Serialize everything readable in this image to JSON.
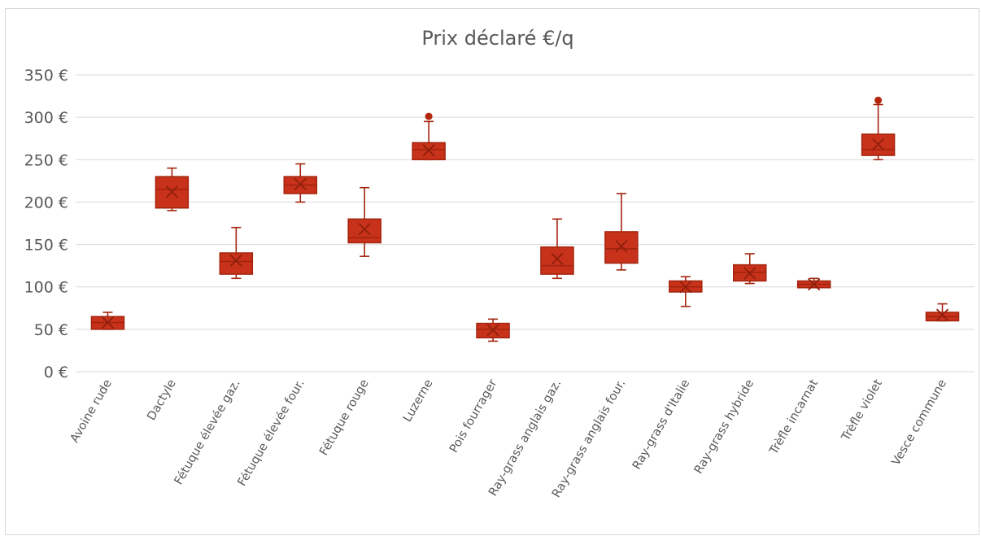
{
  "chart_data": {
    "type": "box",
    "title": "Prix déclaré €/q",
    "xlabel": "",
    "ylabel": "",
    "ylim": [
      0,
      350
    ],
    "y_ticks": [
      0,
      50,
      100,
      150,
      200,
      250,
      300,
      350
    ],
    "y_tick_labels": [
      "0 €",
      "50 €",
      "100 €",
      "150 €",
      "200 €",
      "250 €",
      "300 €",
      "350 €"
    ],
    "grid": true,
    "legend": "none",
    "color": "#c8321b",
    "categories": [
      "Avoine rude",
      "Dactyle",
      "Fétuque élevée gaz.",
      "Fétuque élevée four.",
      "Fétuque rouge",
      "Luzerne",
      "Pois fourrager",
      "Ray-grass anglais gaz.",
      "Ray-grass anglais four.",
      "Ray-grass d'Italie",
      "Ray-grass hybride",
      "Trèfle incarnat",
      "Trèfle violet",
      "Vesce commune"
    ],
    "boxes": [
      {
        "min": 50,
        "q1": 50,
        "median": 58,
        "q3": 65,
        "max": 70,
        "mean": 58,
        "outliers": []
      },
      {
        "min": 190,
        "q1": 193,
        "median": 215,
        "q3": 230,
        "max": 240,
        "mean": 212,
        "outliers": []
      },
      {
        "min": 110,
        "q1": 115,
        "median": 130,
        "q3": 140,
        "max": 170,
        "mean": 131,
        "outliers": []
      },
      {
        "min": 200,
        "q1": 210,
        "median": 220,
        "q3": 230,
        "max": 245,
        "mean": 221,
        "outliers": []
      },
      {
        "min": 136,
        "q1": 152,
        "median": 158,
        "q3": 180,
        "max": 217,
        "mean": 168,
        "outliers": []
      },
      {
        "min": 250,
        "q1": 250,
        "median": 262,
        "q3": 270,
        "max": 295,
        "mean": 261,
        "outliers": [
          301
        ]
      },
      {
        "min": 36,
        "q1": 40,
        "median": 50,
        "q3": 57,
        "max": 62,
        "mean": 49,
        "outliers": []
      },
      {
        "min": 110,
        "q1": 115,
        "median": 125,
        "q3": 147,
        "max": 180,
        "mean": 133,
        "outliers": []
      },
      {
        "min": 120,
        "q1": 128,
        "median": 145,
        "q3": 165,
        "max": 210,
        "mean": 148,
        "outliers": []
      },
      {
        "min": 77,
        "q1": 94,
        "median": 100,
        "q3": 107,
        "max": 112,
        "mean": 100,
        "outliers": []
      },
      {
        "min": 104,
        "q1": 107,
        "median": 117,
        "q3": 126,
        "max": 139,
        "mean": 116,
        "outliers": []
      },
      {
        "min": 99,
        "q1": 99,
        "median": 103,
        "q3": 107,
        "max": 110,
        "mean": 103,
        "outliers": []
      },
      {
        "min": 250,
        "q1": 255,
        "median": 262,
        "q3": 280,
        "max": 315,
        "mean": 268,
        "outliers": [
          320
        ]
      },
      {
        "min": 60,
        "q1": 60,
        "median": 65,
        "q3": 70,
        "max": 80,
        "mean": 67,
        "outliers": []
      }
    ]
  }
}
